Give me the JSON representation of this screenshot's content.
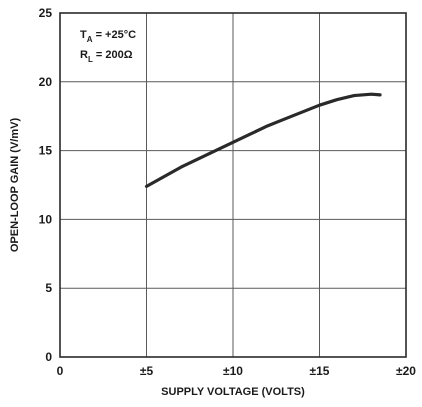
{
  "chart_data": {
    "type": "line",
    "xlabel": "SUPPLY VOLTAGE (VOLTS)",
    "ylabel": "OPEN-LOOP GAIN (V/mV)",
    "xlim": [
      0,
      20
    ],
    "ylim": [
      0,
      25
    ],
    "x_ticks": [
      0,
      5,
      10,
      15,
      20
    ],
    "x_tick_labels": [
      "0",
      "±5",
      "±10",
      "±15",
      "±20"
    ],
    "y_ticks": [
      0,
      5,
      10,
      15,
      20,
      25
    ],
    "y_tick_labels": [
      "0",
      "5",
      "10",
      "15",
      "20",
      "25"
    ],
    "grid": true,
    "conditions": {
      "ta_base": "T",
      "ta_sub": "A",
      "ta_value": " = +25°C",
      "rl_base": "R",
      "rl_sub": "L",
      "rl_value": " = 200Ω"
    },
    "series": [
      {
        "x": [
          5,
          6,
          7,
          8,
          9,
          10,
          11,
          12,
          13,
          14,
          15,
          16,
          17,
          18,
          18.5
        ],
        "y": [
          12.4,
          13.1,
          13.8,
          14.4,
          15.0,
          15.6,
          16.2,
          16.8,
          17.3,
          17.8,
          18.3,
          18.7,
          19.0,
          19.1,
          19.05
        ]
      }
    ],
    "colors": {
      "curve": "#2a2a2a",
      "grid": "#5a5a5a",
      "frame": "#2a2a2a"
    }
  }
}
